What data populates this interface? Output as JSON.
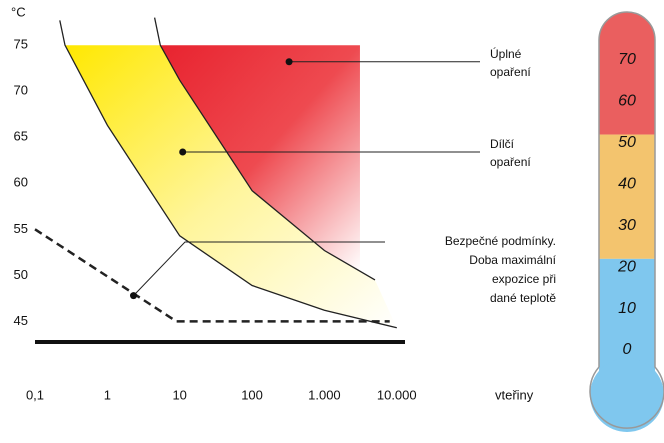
{
  "chart_data": {
    "type": "scald",
    "ylabel": "°C",
    "xlabel": "vteřiny",
    "xscale": "log",
    "xlim": [
      0.1,
      13000
    ],
    "ylim": [
      39.5,
      78.5
    ],
    "xticks": [
      {
        "value": 0.1,
        "label": "0,1"
      },
      1,
      10,
      100,
      {
        "value": 1000,
        "label": "1.000"
      },
      {
        "value": 10000,
        "label": "10.000"
      }
    ],
    "yticks": [
      45,
      50,
      55,
      60,
      65,
      70,
      75
    ],
    "region_top": 75,
    "full_scald_xmax": 3100,
    "partial_curve": {
      "x": [
        0.22,
        0.26,
        1,
        10,
        100,
        1000,
        10000
      ],
      "y": [
        77.7,
        75,
        66.3,
        54.3,
        48.9,
        46.2,
        44.3
      ]
    },
    "full_curve": {
      "x": [
        4.5,
        5.4,
        10,
        100,
        1000,
        5000
      ],
      "y": [
        78,
        75,
        71.2,
        59.2,
        52.7,
        49.5
      ]
    },
    "safe_line": {
      "x": [
        0.1,
        9,
        8000
      ],
      "y": [
        55,
        45,
        45
      ]
    },
    "annotations": [
      {
        "lines": [
          "Úplné",
          "opaření"
        ],
        "x": 325,
        "y": 73.2
      },
      {
        "lines": [
          "Dílčí",
          "opaření"
        ],
        "x": 11,
        "y": 63.4
      },
      {
        "lines": [
          "Bezpečné podmínky.",
          "Doba maximální",
          "expozice při",
          "dané teplotě"
        ],
        "x": 2.3,
        "y": 47.8
      }
    ],
    "thermometer": {
      "scale": [
        0,
        70
      ],
      "ticks": [
        70,
        60,
        50,
        40,
        30,
        20,
        10,
        0
      ],
      "bands": [
        52,
        22
      ],
      "colors": [
        "#ea5f5f",
        "#f3c46e",
        "#7fc7ee"
      ]
    }
  }
}
